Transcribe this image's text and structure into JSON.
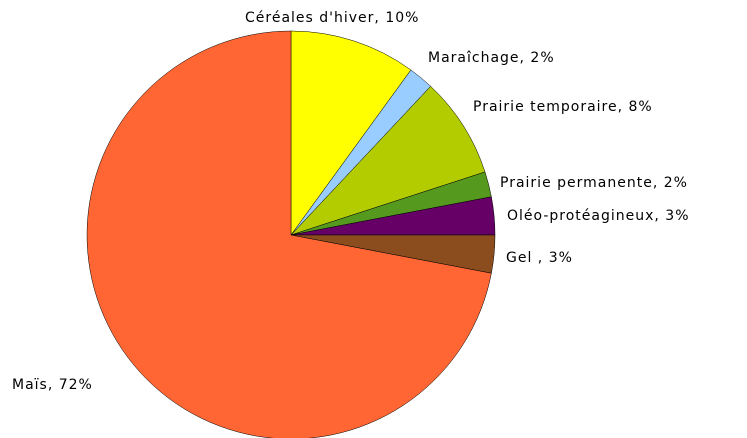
{
  "chart_data": {
    "type": "pie",
    "value_labels": [
      "Céréales d'hiver, 10%",
      "Maraîchage, 2%",
      "Prairie temporaire, 8%",
      "Prairie permanente, 2%",
      "Oléo-protéagineux, 3%",
      "Gel , 3%",
      "Maïs, 72%"
    ],
    "values": [
      10,
      2,
      8,
      2,
      3,
      3,
      72
    ],
    "colors": [
      "#ffff00",
      "#99ccff",
      "#b3cc00",
      "#559a1f",
      "#660066",
      "#8b4c1e",
      "#ff6633"
    ]
  }
}
